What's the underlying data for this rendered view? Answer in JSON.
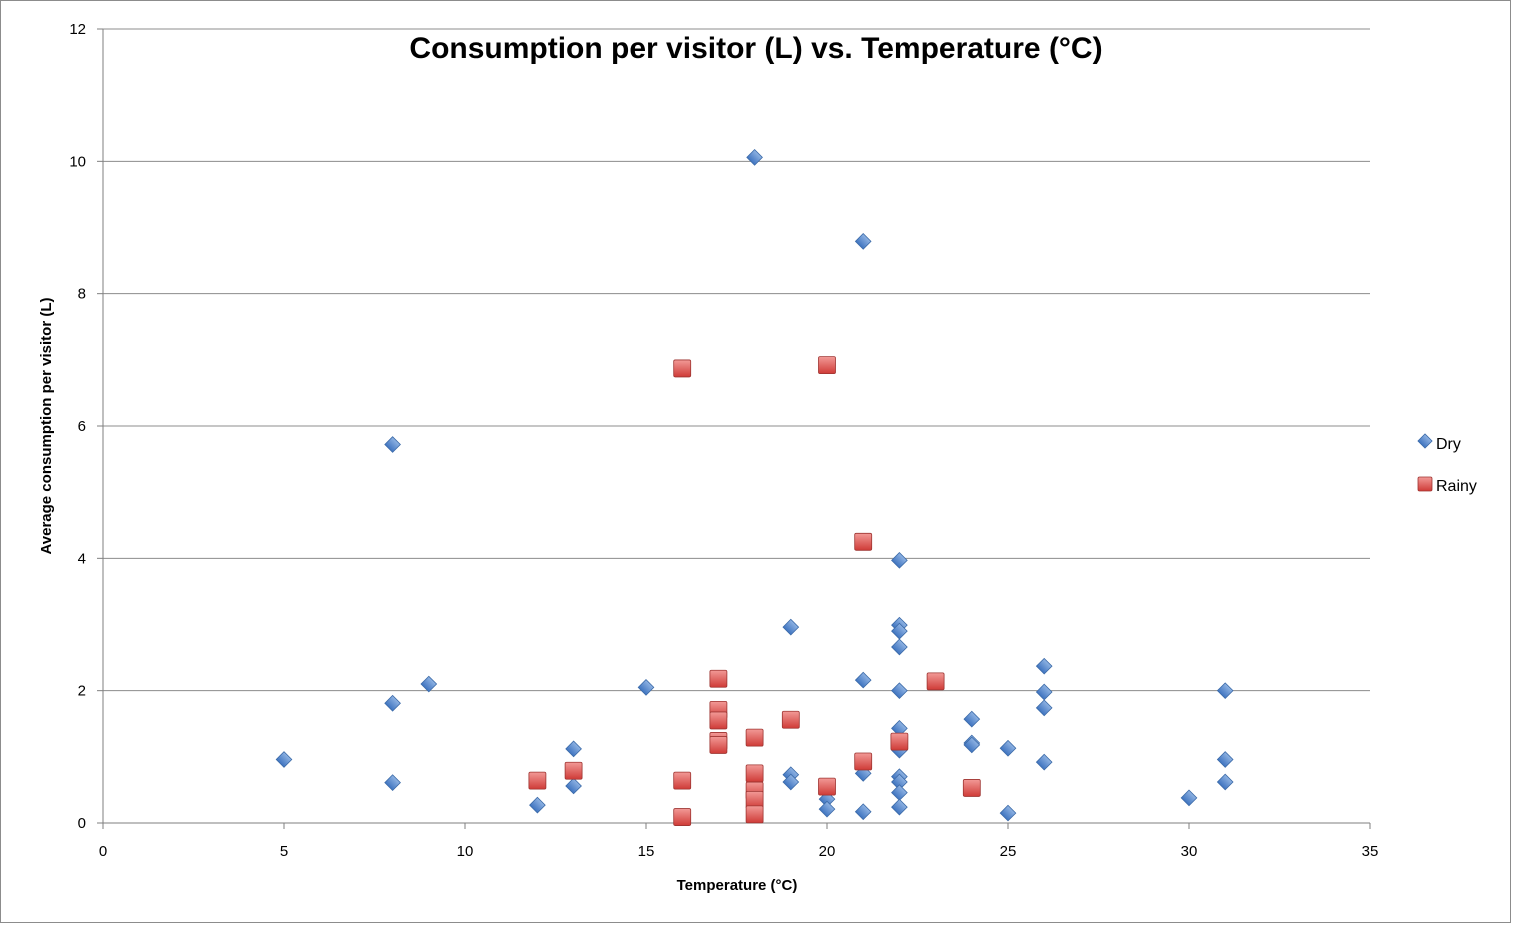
{
  "chart_data": {
    "type": "scatter",
    "title": "Consumption per visitor (L) vs. Temperature (°C)",
    "xlabel": "Temperature (°C)",
    "ylabel": "Average consumption per visitor (L)",
    "xlim": [
      0,
      35
    ],
    "ylim": [
      0,
      12
    ],
    "xticks": [
      0,
      5,
      10,
      15,
      20,
      25,
      30,
      35
    ],
    "yticks": [
      0,
      2,
      4,
      6,
      8,
      10,
      12
    ],
    "grid": "horizontal",
    "legend_position": "right",
    "series": [
      {
        "name": "Dry",
        "marker": "diamond",
        "color": "#4f81bd",
        "points": [
          [
            5,
            0.96
          ],
          [
            8,
            5.72
          ],
          [
            8,
            1.81
          ],
          [
            8,
            0.61
          ],
          [
            9,
            2.1
          ],
          [
            12,
            0.27
          ],
          [
            13,
            1.12
          ],
          [
            13,
            0.56
          ],
          [
            15,
            2.05
          ],
          [
            18,
            10.06
          ],
          [
            19,
            2.96
          ],
          [
            19,
            0.73
          ],
          [
            19,
            0.62
          ],
          [
            20,
            0.36
          ],
          [
            20,
            0.21
          ],
          [
            21,
            8.79
          ],
          [
            21,
            2.16
          ],
          [
            21,
            0.75
          ],
          [
            21,
            0.17
          ],
          [
            22,
            3.97
          ],
          [
            22,
            2.99
          ],
          [
            22,
            2.9
          ],
          [
            22,
            2.66
          ],
          [
            22,
            2.0
          ],
          [
            22,
            1.43
          ],
          [
            22,
            1.1
          ],
          [
            22,
            0.7
          ],
          [
            22,
            0.62
          ],
          [
            22,
            0.46
          ],
          [
            22,
            0.24
          ],
          [
            24,
            1.57
          ],
          [
            24,
            1.21
          ],
          [
            24,
            1.18
          ],
          [
            25,
            1.13
          ],
          [
            25,
            0.15
          ],
          [
            26,
            2.37
          ],
          [
            26,
            1.98
          ],
          [
            26,
            1.74
          ],
          [
            26,
            0.92
          ],
          [
            30,
            0.38
          ],
          [
            31,
            2.0
          ],
          [
            31,
            0.96
          ],
          [
            31,
            0.62
          ]
        ]
      },
      {
        "name": "Rainy",
        "marker": "square",
        "color": "#c0504d",
        "points": [
          [
            12,
            0.64
          ],
          [
            13,
            0.79
          ],
          [
            16,
            6.87
          ],
          [
            16,
            0.64
          ],
          [
            16,
            0.09
          ],
          [
            17,
            2.18
          ],
          [
            17,
            1.71
          ],
          [
            17,
            1.55
          ],
          [
            17,
            1.24
          ],
          [
            17,
            1.18
          ],
          [
            18,
            1.29
          ],
          [
            18,
            0.75
          ],
          [
            18,
            0.49
          ],
          [
            18,
            0.35
          ],
          [
            18,
            0.13
          ],
          [
            19,
            1.56
          ],
          [
            20,
            6.92
          ],
          [
            20,
            0.55
          ],
          [
            21,
            4.25
          ],
          [
            21,
            0.93
          ],
          [
            22,
            1.23
          ],
          [
            23,
            2.14
          ],
          [
            24,
            0.53
          ]
        ]
      }
    ]
  }
}
